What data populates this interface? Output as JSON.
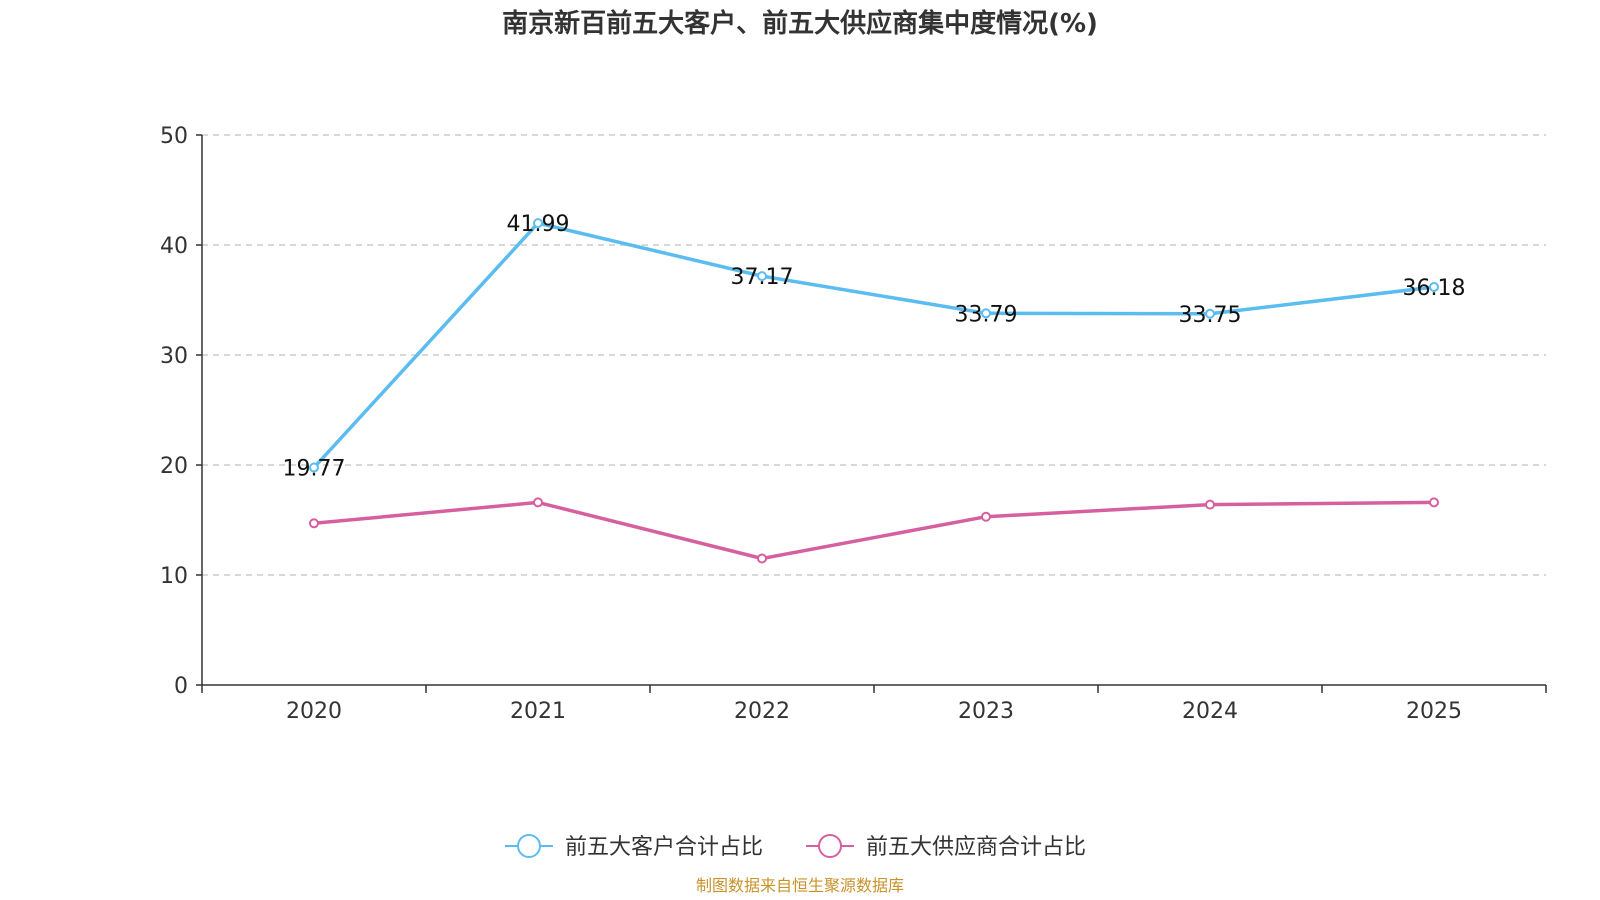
{
  "chart_data": {
    "type": "line",
    "title": "南京新百前五大客户、前五大供应商集中度情况(%)",
    "categories": [
      "2020",
      "2021",
      "2022",
      "2023",
      "2024",
      "2025"
    ],
    "ylim": [
      0,
      50
    ],
    "yticks": [
      0,
      10,
      20,
      30,
      40,
      50
    ],
    "grid": true,
    "legend_position": "bottom",
    "series": [
      {
        "name": "前五大客户合计占比",
        "values": [
          19.77,
          41.99,
          37.17,
          33.79,
          33.75,
          36.18
        ],
        "labels": [
          "19.77",
          "41.99",
          "37.17",
          "33.79",
          "33.75",
          "36.18"
        ],
        "color": "#5bbcf0"
      },
      {
        "name": "前五大供应商合计占比",
        "values": [
          14.7,
          16.6,
          11.5,
          15.3,
          16.4,
          16.6
        ],
        "labels": [],
        "color": "#d6609f"
      }
    ]
  },
  "source": {
    "text": "制图数据来自恒生聚源数据库",
    "color": "#c8922a"
  }
}
